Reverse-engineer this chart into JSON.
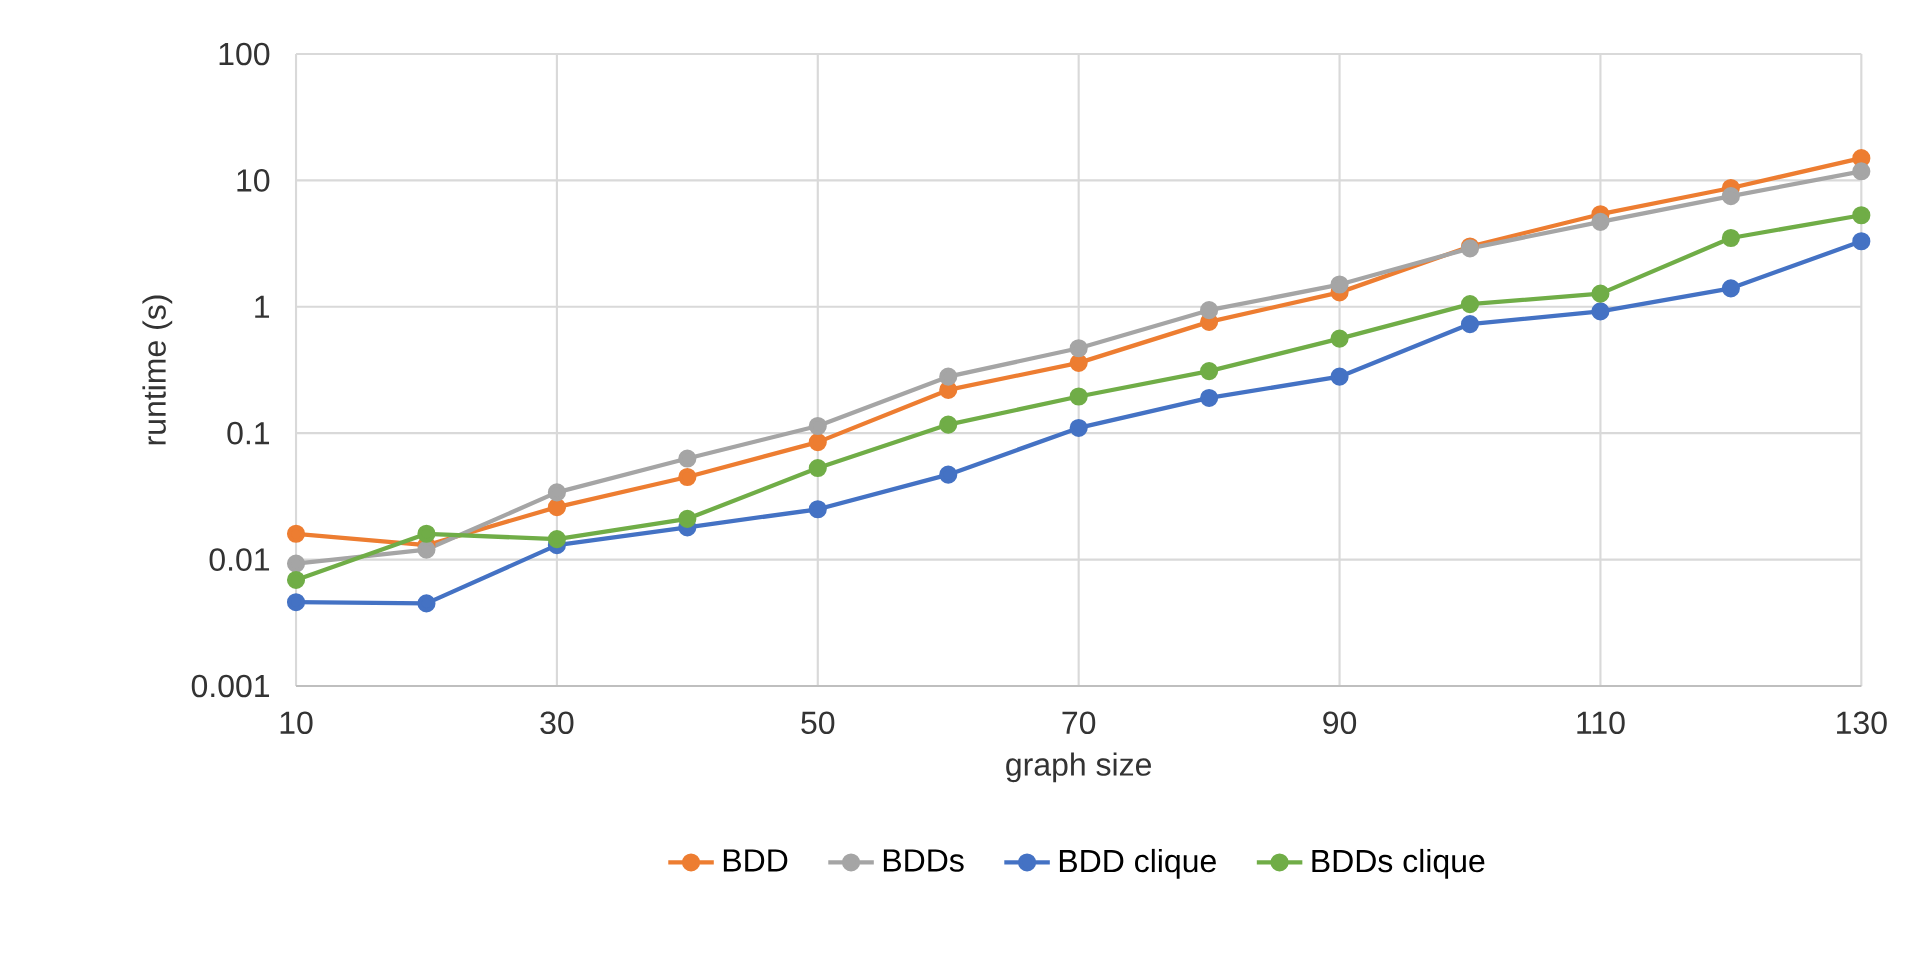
{
  "chart_data": {
    "type": "line",
    "xlabel": "graph size",
    "ylabel": "runtime (s)",
    "x": [
      10,
      20,
      30,
      40,
      50,
      60,
      70,
      80,
      90,
      100,
      110,
      120,
      130
    ],
    "series": [
      {
        "name": "BDD",
        "color": "#ed7d31",
        "values": [
          0.016,
          0.013,
          0.026,
          0.045,
          0.085,
          0.22,
          0.36,
          0.76,
          1.3,
          3.0,
          5.4,
          8.7,
          15
        ]
      },
      {
        "name": "BDDs",
        "color": "#a5a5a5",
        "values": [
          0.0093,
          0.012,
          0.034,
          0.063,
          0.114,
          0.28,
          0.47,
          0.94,
          1.5,
          2.9,
          4.7,
          7.5,
          11.8
        ]
      },
      {
        "name": "BDD clique",
        "color": "#4472c4",
        "values": [
          0.0046,
          0.0045,
          0.013,
          0.018,
          0.025,
          0.047,
          0.11,
          0.19,
          0.28,
          0.73,
          0.92,
          1.4,
          3.3
        ]
      },
      {
        "name": "BDDs clique",
        "color": "#70ad47",
        "values": [
          0.0069,
          0.016,
          0.0145,
          0.021,
          0.053,
          0.117,
          0.195,
          0.31,
          0.56,
          1.05,
          1.27,
          3.5,
          5.3
        ]
      }
    ],
    "xlim": [
      10,
      130
    ],
    "xticks": [
      10,
      30,
      50,
      70,
      90,
      110,
      130
    ],
    "ylim": [
      0.001,
      100
    ],
    "yticks": [
      0.001,
      0.01,
      0.1,
      1,
      10,
      100
    ],
    "log": "y",
    "grid": true,
    "legend": "bottom",
    "marker": "circle",
    "line_style": "solid"
  }
}
